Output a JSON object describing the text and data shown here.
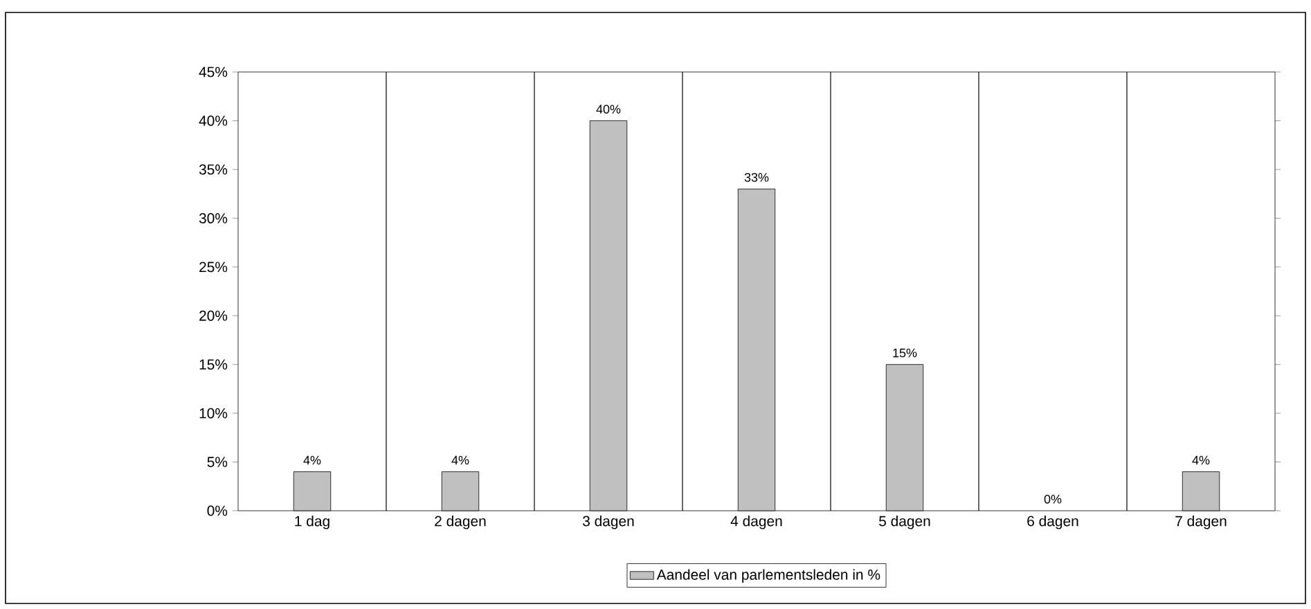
{
  "chart_data": {
    "type": "bar",
    "categories": [
      "1 dag",
      "2 dagen",
      "3 dagen",
      "4 dagen",
      "5 dagen",
      "6 dagen",
      "7 dagen"
    ],
    "series": [
      {
        "name": "Aandeel van parlementsleden in %",
        "color": "#c0c0c0",
        "values": [
          4,
          4,
          40,
          33,
          15,
          0,
          4
        ],
        "value_labels": [
          "4%",
          "4%",
          "40%",
          "33%",
          "15%",
          "0%",
          "4%"
        ]
      }
    ],
    "ylim": [
      0,
      45
    ],
    "yticks": [
      {
        "value": 0,
        "label": "0%"
      },
      {
        "value": 5,
        "label": "5%"
      },
      {
        "value": 10,
        "label": "10%"
      },
      {
        "value": 15,
        "label": "15%"
      },
      {
        "value": 20,
        "label": "20%"
      },
      {
        "value": 25,
        "label": "25%"
      },
      {
        "value": 30,
        "label": "30%"
      },
      {
        "value": 35,
        "label": "35%"
      },
      {
        "value": 40,
        "label": "40%"
      },
      {
        "value": 45,
        "label": "45%"
      }
    ],
    "grid": "x",
    "legend": "bottom"
  }
}
